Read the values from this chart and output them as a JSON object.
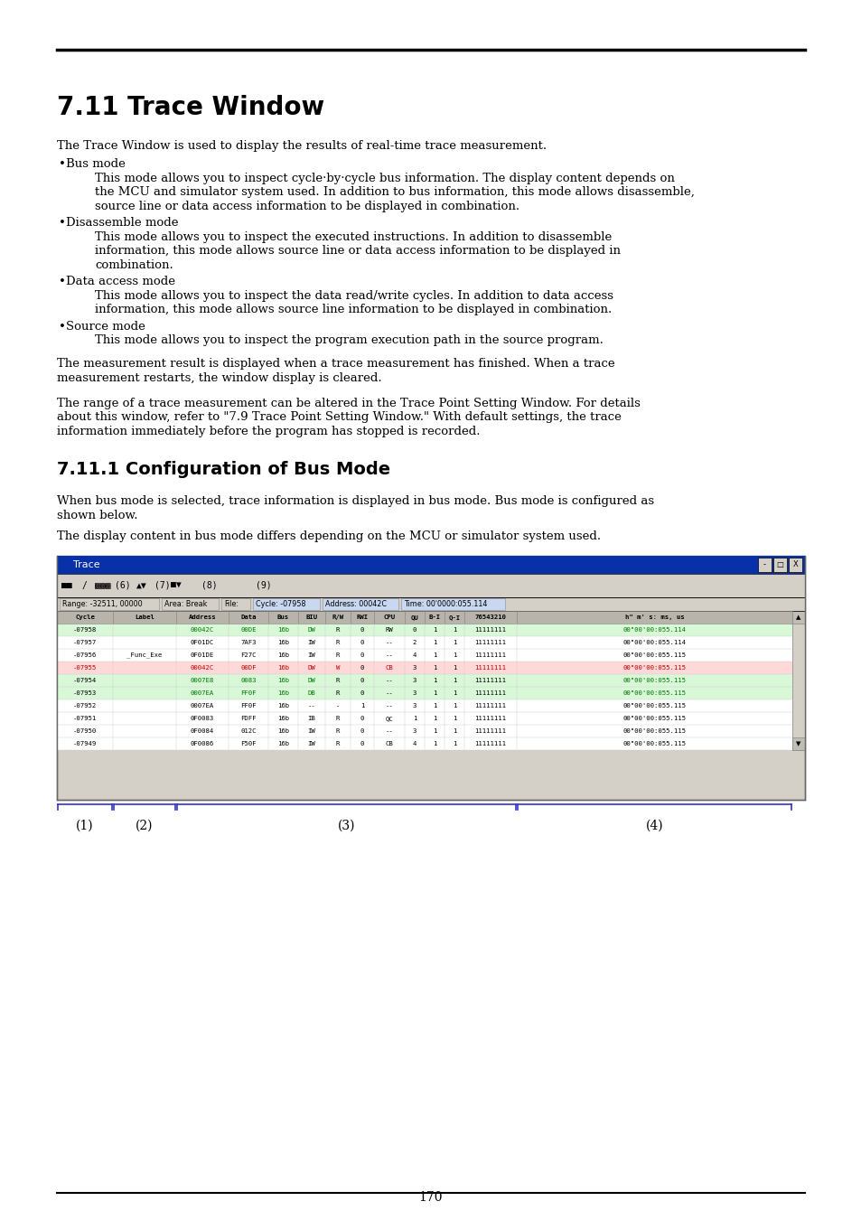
{
  "title": "7.11 Trace Window",
  "subtitle_711": "7.11.1 Configuration of Bus Mode",
  "page_number": "170",
  "body_text_711": "The Trace Window is used to display the results of real-time trace measurement.",
  "bullet_items": [
    {
      "title": "Bus mode",
      "text": "This mode allows you to inspect cycle·by·cycle bus information. The display content depends on the MCU and simulator system used. In addition to bus information, this mode allows disassemble, source line or data access information to be displayed in combination."
    },
    {
      "title": "Disassemble mode",
      "text": "This mode allows you to inspect the executed instructions. In addition to disassemble information, this mode allows source line or data access information to be displayed in combination."
    },
    {
      "title": "Data access mode",
      "text": "This mode allows you to inspect the data read/write cycles. In addition to data access information, this mode allows source line information to be displayed in combination."
    },
    {
      "title": "Source mode",
      "text": "This mode allows you to inspect the program execution path in the source program."
    }
  ],
  "para1_lines": [
    "The measurement result is displayed when a trace measurement has finished. When a trace",
    "measurement restarts, the window display is cleared."
  ],
  "para2_lines": [
    "The range of a trace measurement can be altered in the Trace Point Setting Window. For details",
    "about this window, refer to \"7.9 Trace Point Setting Window.\" With default settings, the trace",
    "information immediately before the program has stopped is recorded."
  ],
  "body_7111_lines": [
    "When bus mode is selected, trace information is displayed in bus mode. Bus mode is configured as",
    "shown below.",
    "",
    "The display content in bus mode differs depending on the MCU or simulator system used."
  ],
  "window_title": "Trace",
  "col_headers": [
    "Cycle",
    "Label",
    "Address",
    "Data",
    "Bus",
    "BIU",
    "R/W",
    "RWI",
    "CPU",
    "QU",
    "B-I",
    "Q-I",
    "76543210",
    "h\" m' s: ms, us"
  ],
  "rows": [
    {
      "cycle": "-07958",
      "label": "",
      "address": "00042C",
      "data": "00DE",
      "bus": "16b",
      "biu": "DW",
      "rw": "R",
      "rwi": "0",
      "cpu": "RW",
      "qu": "0",
      "bi": "1",
      "qi": "1",
      "bits": "11111111",
      "time": "00\"00'00:055.114",
      "highlight": "green"
    },
    {
      "cycle": "-07957",
      "label": "",
      "address": "0F01DC",
      "data": "7AF3",
      "bus": "16b",
      "biu": "IW",
      "rw": "R",
      "rwi": "0",
      "cpu": "--",
      "qu": "2",
      "bi": "1",
      "qi": "1",
      "bits": "11111111",
      "time": "00\"00'00:055.114",
      "highlight": "none"
    },
    {
      "cycle": "-07956",
      "label": "_Func_Exe",
      "address": "0F01DE",
      "data": "F27C",
      "bus": "16b",
      "biu": "IW",
      "rw": "R",
      "rwi": "0",
      "cpu": "--",
      "qu": "4",
      "bi": "1",
      "qi": "1",
      "bits": "11111111",
      "time": "00\"00'00:055.115",
      "highlight": "none"
    },
    {
      "cycle": "-07955",
      "label": "",
      "address": "00042C",
      "data": "00DF",
      "bus": "16b",
      "biu": "DW",
      "rw": "W",
      "rwi": "0",
      "cpu": "CB",
      "qu": "3",
      "bi": "1",
      "qi": "1",
      "bits": "11111111",
      "time": "00\"00'00:055.115",
      "highlight": "red"
    },
    {
      "cycle": "-07954",
      "label": "",
      "address": "0007E8",
      "data": "0083",
      "bus": "16b",
      "biu": "DW",
      "rw": "R",
      "rwi": "0",
      "cpu": "--",
      "qu": "3",
      "bi": "1",
      "qi": "1",
      "bits": "11111111",
      "time": "00\"00'00:055.115",
      "highlight": "green"
    },
    {
      "cycle": "-07953",
      "label": "",
      "address": "0007EA",
      "data": "FF0F",
      "bus": "16b",
      "biu": "DB",
      "rw": "R",
      "rwi": "0",
      "cpu": "--",
      "qu": "3",
      "bi": "1",
      "qi": "1",
      "bits": "11111111",
      "time": "00\"00'00:055.115",
      "highlight": "green"
    },
    {
      "cycle": "-07952",
      "label": "",
      "address": "0007EA",
      "data": "FF0F",
      "bus": "16b",
      "biu": "--",
      "rw": "-",
      "rwi": "1",
      "cpu": "--",
      "qu": "3",
      "bi": "1",
      "qi": "1",
      "bits": "11111111",
      "time": "00\"00'00:055.115",
      "highlight": "none"
    },
    {
      "cycle": "-07951",
      "label": "",
      "address": "0F0083",
      "data": "FDFF",
      "bus": "16b",
      "biu": "IB",
      "rw": "R",
      "rwi": "0",
      "cpu": "QC",
      "qu": "1",
      "bi": "1",
      "qi": "1",
      "bits": "11111111",
      "time": "00\"00'00:055.115",
      "highlight": "none"
    },
    {
      "cycle": "-07950",
      "label": "",
      "address": "0F0084",
      "data": "012C",
      "bus": "16b",
      "biu": "IW",
      "rw": "R",
      "rwi": "0",
      "cpu": "--",
      "qu": "3",
      "bi": "1",
      "qi": "1",
      "bits": "11111111",
      "time": "00\"00'00:055.115",
      "highlight": "none"
    },
    {
      "cycle": "-07949",
      "label": "",
      "address": "0F0086",
      "data": "F50F",
      "bus": "16b",
      "biu": "IW",
      "rw": "R",
      "rwi": "0",
      "cpu": "CB",
      "qu": "4",
      "bi": "1",
      "qi": "1",
      "bits": "11111111",
      "time": "00\"00'00:055.115",
      "highlight": "none"
    }
  ],
  "bracket_labels": [
    "(1)",
    "(2)",
    "(3)",
    "(4)"
  ]
}
